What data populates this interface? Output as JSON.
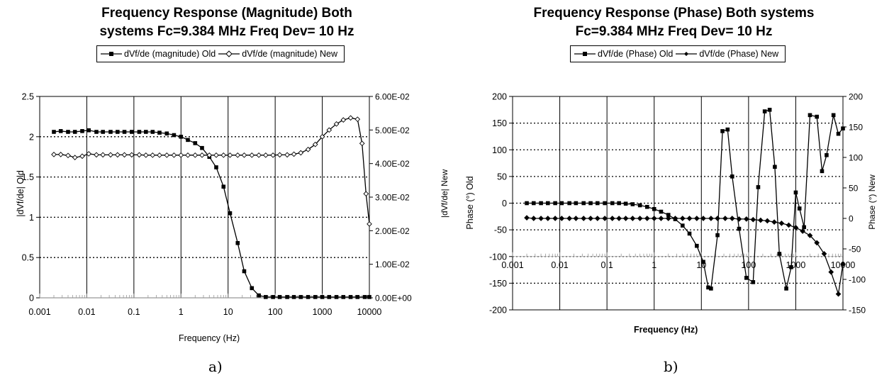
{
  "chart_data": [
    {
      "type": "line",
      "title_lines": [
        "Frequency Response (Magnitude) Both",
        "systems Fc=9.384 MHz Freq Dev= 10 Hz"
      ],
      "sub_label": "a)",
      "xlabel": "Frequency (Hz)",
      "ylabel": "|dVf/de| Old",
      "y2label": "|dVf/de| New",
      "xscale": "log",
      "xlim": [
        0.001,
        10000
      ],
      "ylim": [
        0,
        2.5
      ],
      "y2lim": [
        0,
        0.06
      ],
      "xticks": [
        "0.001",
        "0.01",
        "0.1",
        "1",
        "10",
        "100",
        "1000",
        "10000"
      ],
      "yticks": [
        "0",
        "0.5",
        "1",
        "1.5",
        "2",
        "2.5"
      ],
      "y2ticks": [
        "0.00E+00",
        "1.00E-02",
        "2.00E-02",
        "3.00E-02",
        "4.00E-02",
        "5.00E-02",
        "6.00E-02"
      ],
      "grid": "vertical solid, horizontal dotted",
      "legend_position": "top",
      "series": [
        {
          "name": "dVf/de (magnitude) Old",
          "marker": "square",
          "axis": "left",
          "x": [
            0.002,
            0.0028,
            0.004,
            0.0056,
            0.008,
            0.011,
            0.016,
            0.022,
            0.032,
            0.045,
            0.063,
            0.09,
            0.13,
            0.18,
            0.25,
            0.35,
            0.5,
            0.71,
            1.0,
            1.4,
            2.0,
            2.8,
            4.0,
            5.6,
            8.0,
            11,
            16,
            22,
            32,
            45,
            63,
            90,
            125,
            180,
            250,
            350,
            500,
            710,
            1000,
            1400,
            2000,
            2800,
            4000,
            5600,
            8000,
            10000
          ],
          "values": [
            2.06,
            2.07,
            2.06,
            2.06,
            2.07,
            2.08,
            2.06,
            2.06,
            2.06,
            2.06,
            2.06,
            2.06,
            2.06,
            2.06,
            2.06,
            2.05,
            2.04,
            2.02,
            2.0,
            1.96,
            1.92,
            1.86,
            1.75,
            1.62,
            1.38,
            1.05,
            0.68,
            0.33,
            0.12,
            0.03,
            0.01,
            0.01,
            0.01,
            0.01,
            0.01,
            0.01,
            0.01,
            0.01,
            0.01,
            0.01,
            0.01,
            0.01,
            0.01,
            0.01,
            0.01,
            0.01
          ]
        },
        {
          "name": "dVf/de (magnitude) New",
          "marker": "diamond",
          "axis": "right",
          "x": [
            0.002,
            0.0028,
            0.004,
            0.0056,
            0.008,
            0.011,
            0.016,
            0.022,
            0.032,
            0.045,
            0.063,
            0.09,
            0.13,
            0.18,
            0.25,
            0.35,
            0.5,
            0.71,
            1.0,
            1.4,
            2.0,
            2.8,
            4.0,
            5.6,
            8.0,
            11,
            16,
            22,
            32,
            45,
            63,
            90,
            125,
            180,
            250,
            350,
            500,
            710,
            1000,
            1400,
            2000,
            2800,
            4000,
            5600,
            7000,
            8500,
            10000
          ],
          "values": [
            0.0427,
            0.0427,
            0.0424,
            0.0418,
            0.0422,
            0.0429,
            0.0426,
            0.0426,
            0.0426,
            0.0426,
            0.0426,
            0.0426,
            0.0426,
            0.0425,
            0.0425,
            0.0425,
            0.0425,
            0.0425,
            0.0425,
            0.0425,
            0.0425,
            0.0425,
            0.0425,
            0.0425,
            0.0425,
            0.0425,
            0.0425,
            0.0425,
            0.0425,
            0.0425,
            0.0425,
            0.0425,
            0.0426,
            0.0426,
            0.0428,
            0.0432,
            0.0442,
            0.0457,
            0.048,
            0.05,
            0.0518,
            0.053,
            0.0536,
            0.0532,
            0.046,
            0.031,
            0.022
          ]
        }
      ]
    },
    {
      "type": "line",
      "title_lines": [
        "Frequency Response (Phase) Both systems",
        "Fc=9.384 MHz Freq Dev= 10 Hz"
      ],
      "sub_label": "b)",
      "xlabel": "Frequency (Hz)",
      "ylabel": "Phase (°) Old",
      "y2label": "Phase (°) New",
      "xscale": "log",
      "xlim": [
        0.001,
        10000
      ],
      "ylim": [
        -200,
        200
      ],
      "y2lim": [
        -150,
        200
      ],
      "xticks": [
        "0.001",
        "0.01",
        "0.1",
        "1",
        "10",
        "100",
        "1000",
        "10000"
      ],
      "yticks": [
        "-200",
        "-150",
        "-100",
        "-50",
        "0",
        "50",
        "100",
        "150",
        "200"
      ],
      "y2ticks": [
        "-150",
        "-100",
        "-50",
        "0",
        "50",
        "100",
        "150",
        "200"
      ],
      "grid": "vertical solid, horizontal dotted",
      "legend_position": "top",
      "series": [
        {
          "name": "dVf/de (Phase) Old",
          "marker": "square",
          "axis": "left",
          "x": [
            0.002,
            0.0028,
            0.004,
            0.0056,
            0.008,
            0.011,
            0.016,
            0.022,
            0.032,
            0.045,
            0.063,
            0.09,
            0.13,
            0.18,
            0.25,
            0.35,
            0.5,
            0.71,
            1.0,
            1.4,
            2.0,
            2.8,
            4.0,
            5.6,
            8.0,
            11,
            14,
            16,
            22,
            28,
            36,
            45,
            63,
            90,
            125,
            160,
            220,
            280,
            360,
            450,
            630,
            800,
            1000,
            1200,
            1500,
            2000,
            2800,
            3600,
            4500,
            6300,
            8000,
            10000
          ],
          "values": [
            0,
            0,
            0,
            0,
            0,
            0,
            0,
            0,
            0,
            0,
            0,
            0,
            0,
            0,
            -1,
            -2,
            -4,
            -7,
            -11,
            -16,
            -22,
            -30,
            -42,
            -57,
            -80,
            -110,
            -158,
            -160,
            -60,
            135,
            138,
            50,
            -48,
            -140,
            -148,
            30,
            172,
            175,
            68,
            -95,
            -160,
            -120,
            20,
            -10,
            -45,
            165,
            162,
            60,
            90,
            165,
            130,
            140
          ]
        },
        {
          "name": "dVf/de (Phase) New",
          "marker": "diamond",
          "axis": "right",
          "x": [
            0.002,
            0.0028,
            0.004,
            0.0056,
            0.008,
            0.011,
            0.016,
            0.022,
            0.032,
            0.045,
            0.063,
            0.09,
            0.13,
            0.18,
            0.25,
            0.35,
            0.5,
            0.71,
            1.0,
            1.4,
            2.0,
            2.8,
            4.0,
            5.6,
            8.0,
            11,
            16,
            22,
            32,
            45,
            63,
            90,
            125,
            180,
            250,
            350,
            500,
            710,
            1000,
            1400,
            2000,
            2800,
            4000,
            5600,
            8000,
            10000
          ],
          "values": [
            1,
            0,
            0,
            0,
            0,
            0,
            0,
            0,
            0,
            0,
            0,
            0,
            0,
            0,
            0,
            0,
            0,
            0,
            0,
            0,
            0,
            0,
            0,
            0,
            0,
            0,
            0,
            0,
            0,
            0,
            -1,
            -1,
            -2,
            -3,
            -4,
            -6,
            -8,
            -11,
            -15,
            -21,
            -28,
            -40,
            -58,
            -88,
            -124,
            -75
          ]
        }
      ]
    }
  ]
}
